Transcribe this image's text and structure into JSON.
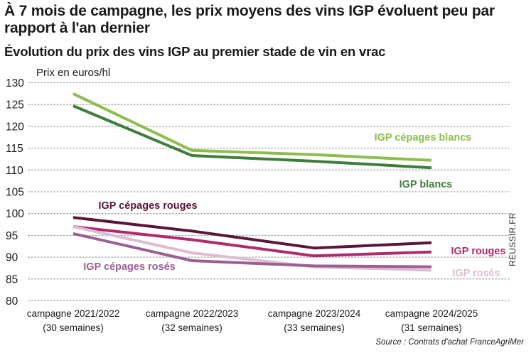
{
  "header": {
    "title_line1": "À 7 mois de campagne, les prix moyens des vins IGP évoluent peu par",
    "title_line2": "rapport à l'an dernier",
    "subtitle": "Évolution du prix des vins IGP au premier stade de vin en vrac"
  },
  "watermark": "REUSSIR.FR",
  "source": "Source : Contrats d'achat FranceAgriMer",
  "chart_data": {
    "type": "line",
    "title": "Évolution du prix des vins IGP au premier stade de vin en vrac",
    "ylabel": "Prix en euros/hl",
    "xlabel": "",
    "ylim": [
      80,
      130
    ],
    "yticks": [
      80,
      85,
      90,
      95,
      100,
      105,
      110,
      115,
      120,
      125,
      130
    ],
    "grid": "horizontal dotted",
    "categories": [
      {
        "line1": "campagne 2021/2022",
        "line2": "(30 semaines)"
      },
      {
        "line1": "campagne 2022/2023",
        "line2": "(32 semaines)"
      },
      {
        "line1": "campagne 2023/2024",
        "line2": "(33 semaines)"
      },
      {
        "line1": "campagne 2024/2025",
        "line2": "(31 semaines)"
      }
    ],
    "series": [
      {
        "name": "IGP cépages blancs",
        "color": "#8dbd4d",
        "values": [
          127.5,
          114.5,
          113.5,
          112.2
        ]
      },
      {
        "name": "IGP blancs",
        "color": "#3f7d3c",
        "values": [
          124.7,
          113.3,
          112.0,
          110.5
        ]
      },
      {
        "name": "IGP cépages rouges",
        "color": "#5a1638",
        "values": [
          99.1,
          96.0,
          92.1,
          93.3
        ]
      },
      {
        "name": "IGP rouges",
        "color": "#b02a6c",
        "values": [
          97.0,
          94.0,
          90.3,
          91.2
        ]
      },
      {
        "name": "IGP rosés",
        "color": "#dcbdd1",
        "values": [
          97.0,
          91.0,
          87.8,
          87.0
        ]
      },
      {
        "name": "IGP cépages rosés",
        "color": "#9c5f92",
        "values": [
          95.4,
          89.2,
          88.0,
          87.8
        ]
      }
    ]
  }
}
